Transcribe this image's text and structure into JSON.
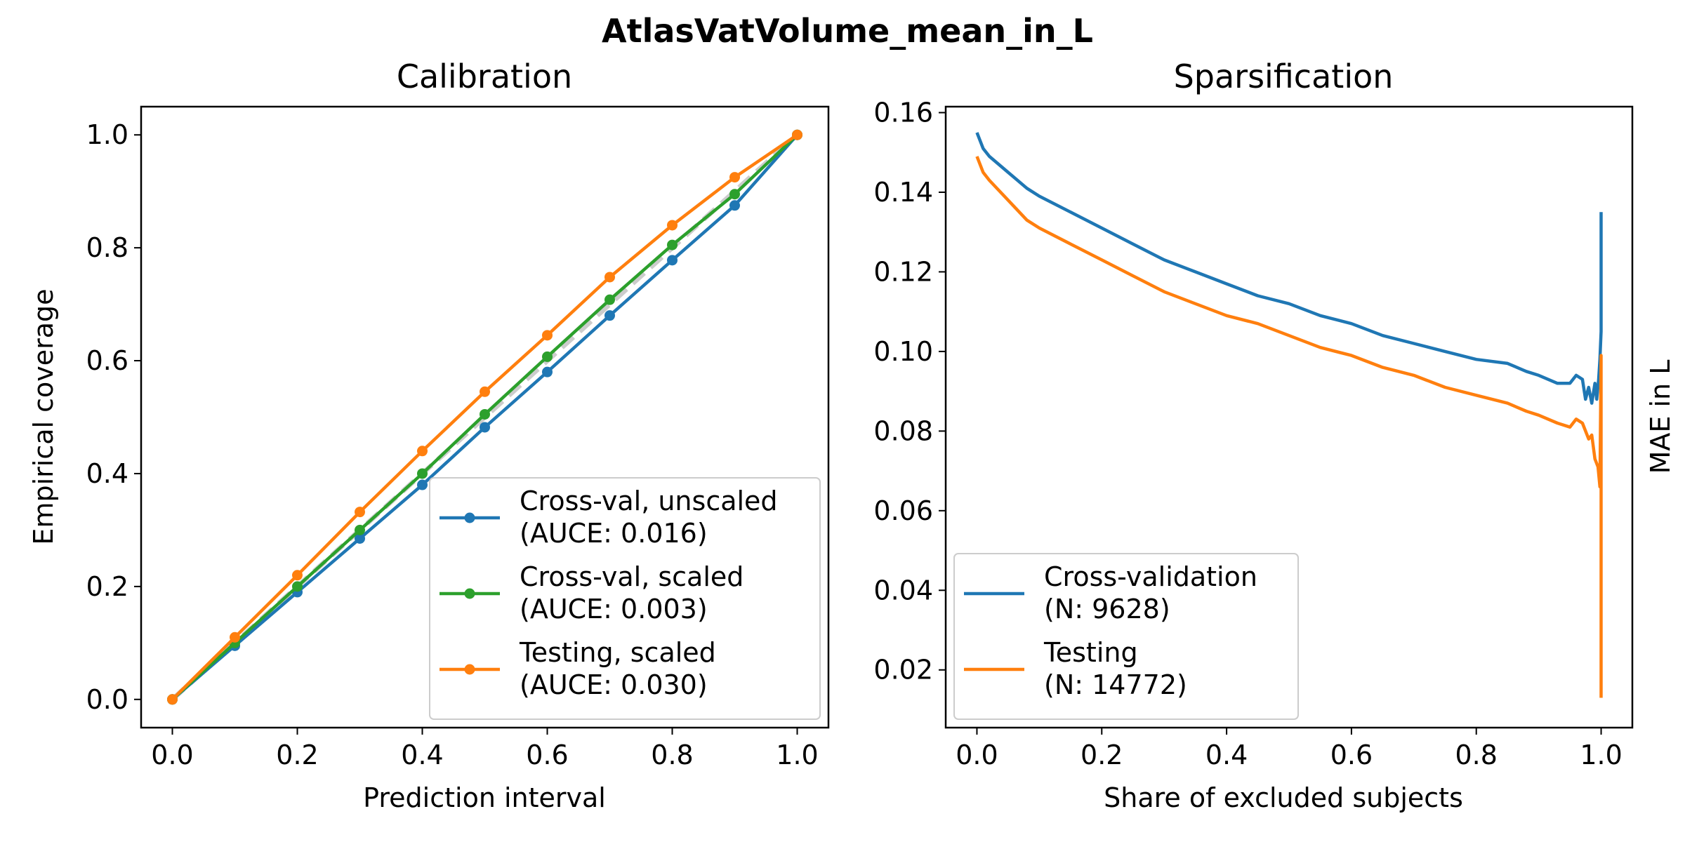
{
  "figure": {
    "title": "AtlasVatVolume_mean_in_L"
  },
  "chart_data": [
    {
      "type": "line",
      "title": "Calibration",
      "xlabel": "Prediction interval",
      "ylabel": "Empirical coverage",
      "xlim": [
        -0.05,
        1.05
      ],
      "ylim": [
        -0.05,
        1.05
      ],
      "xticks": [
        0.0,
        0.2,
        0.4,
        0.6,
        0.8,
        1.0
      ],
      "yticks": [
        0.0,
        0.2,
        0.4,
        0.6,
        0.8,
        1.0
      ],
      "xtick_labels": [
        "0.0",
        "0.2",
        "0.4",
        "0.6",
        "0.8",
        "1.0"
      ],
      "ytick_labels": [
        "0.0",
        "0.2",
        "0.4",
        "0.6",
        "0.8",
        "1.0"
      ],
      "grid": false,
      "legend_position": "lower right",
      "reference_line": {
        "x": [
          0,
          1
        ],
        "y": [
          0,
          1
        ],
        "color": "#cccccc",
        "style": "dashed"
      },
      "x": [
        0.0,
        0.1,
        0.2,
        0.3,
        0.4,
        0.5,
        0.6,
        0.7,
        0.8,
        0.9,
        1.0
      ],
      "series": [
        {
          "name": "Cross-val, unscaled\n(AUCE: 0.016)",
          "color": "#1f77b4",
          "values": [
            0.0,
            0.095,
            0.19,
            0.285,
            0.38,
            0.482,
            0.58,
            0.68,
            0.778,
            0.875,
            1.0
          ]
        },
        {
          "name": "Cross-val, scaled\n(AUCE: 0.003)",
          "color": "#2ca02c",
          "values": [
            0.0,
            0.1,
            0.2,
            0.3,
            0.4,
            0.505,
            0.607,
            0.708,
            0.805,
            0.895,
            1.0
          ]
        },
        {
          "name": "Testing, scaled\n(AUCE: 0.030)",
          "color": "#ff7f0e",
          "values": [
            0.0,
            0.11,
            0.22,
            0.332,
            0.44,
            0.545,
            0.645,
            0.748,
            0.84,
            0.925,
            1.0
          ]
        }
      ]
    },
    {
      "type": "line",
      "title": "Sparsification",
      "xlabel": "Share of excluded subjects",
      "ylabel": "MAE in L",
      "xlim": [
        -0.05,
        1.05
      ],
      "ylim": [
        0.0055,
        0.1615
      ],
      "xticks": [
        0.0,
        0.2,
        0.4,
        0.6,
        0.8,
        1.0
      ],
      "yticks": [
        0.02,
        0.04,
        0.06,
        0.08,
        0.1,
        0.12,
        0.14,
        0.16
      ],
      "xtick_labels": [
        "0.0",
        "0.2",
        "0.4",
        "0.6",
        "0.8",
        "1.0"
      ],
      "ytick_labels": [
        "0.02",
        "0.04",
        "0.06",
        "0.08",
        "0.10",
        "0.12",
        "0.14",
        "0.16"
      ],
      "grid": false,
      "legend_position": "lower left",
      "series": [
        {
          "name": "Cross-validation\n(N: 9628)",
          "color": "#1f77b4",
          "x": [
            0.0,
            0.01,
            0.02,
            0.05,
            0.08,
            0.1,
            0.15,
            0.2,
            0.25,
            0.3,
            0.35,
            0.4,
            0.45,
            0.5,
            0.55,
            0.6,
            0.65,
            0.7,
            0.75,
            0.8,
            0.85,
            0.88,
            0.9,
            0.93,
            0.95,
            0.96,
            0.97,
            0.975,
            0.98,
            0.985,
            0.99,
            0.993,
            0.996,
            0.998,
            1.0,
            1.0
          ],
          "values": [
            0.155,
            0.151,
            0.149,
            0.145,
            0.141,
            0.139,
            0.135,
            0.131,
            0.127,
            0.123,
            0.12,
            0.117,
            0.114,
            0.112,
            0.109,
            0.107,
            0.104,
            0.102,
            0.1,
            0.098,
            0.097,
            0.095,
            0.094,
            0.092,
            0.092,
            0.094,
            0.093,
            0.088,
            0.091,
            0.087,
            0.092,
            0.088,
            0.093,
            0.098,
            0.105,
            0.135
          ]
        },
        {
          "name": "Testing\n(N: 14772)",
          "color": "#ff7f0e",
          "x": [
            0.0,
            0.01,
            0.02,
            0.05,
            0.08,
            0.1,
            0.15,
            0.2,
            0.25,
            0.3,
            0.35,
            0.4,
            0.45,
            0.5,
            0.55,
            0.6,
            0.65,
            0.7,
            0.75,
            0.8,
            0.85,
            0.88,
            0.9,
            0.93,
            0.95,
            0.96,
            0.97,
            0.98,
            0.985,
            0.99,
            0.995,
            0.998,
            1.0,
            1.0,
            1.0
          ],
          "values": [
            0.149,
            0.145,
            0.143,
            0.138,
            0.133,
            0.131,
            0.127,
            0.123,
            0.119,
            0.115,
            0.112,
            0.109,
            0.107,
            0.104,
            0.101,
            0.099,
            0.096,
            0.094,
            0.091,
            0.089,
            0.087,
            0.085,
            0.084,
            0.082,
            0.081,
            0.083,
            0.082,
            0.078,
            0.079,
            0.073,
            0.071,
            0.066,
            0.099,
            0.045,
            0.013
          ]
        }
      ]
    }
  ]
}
